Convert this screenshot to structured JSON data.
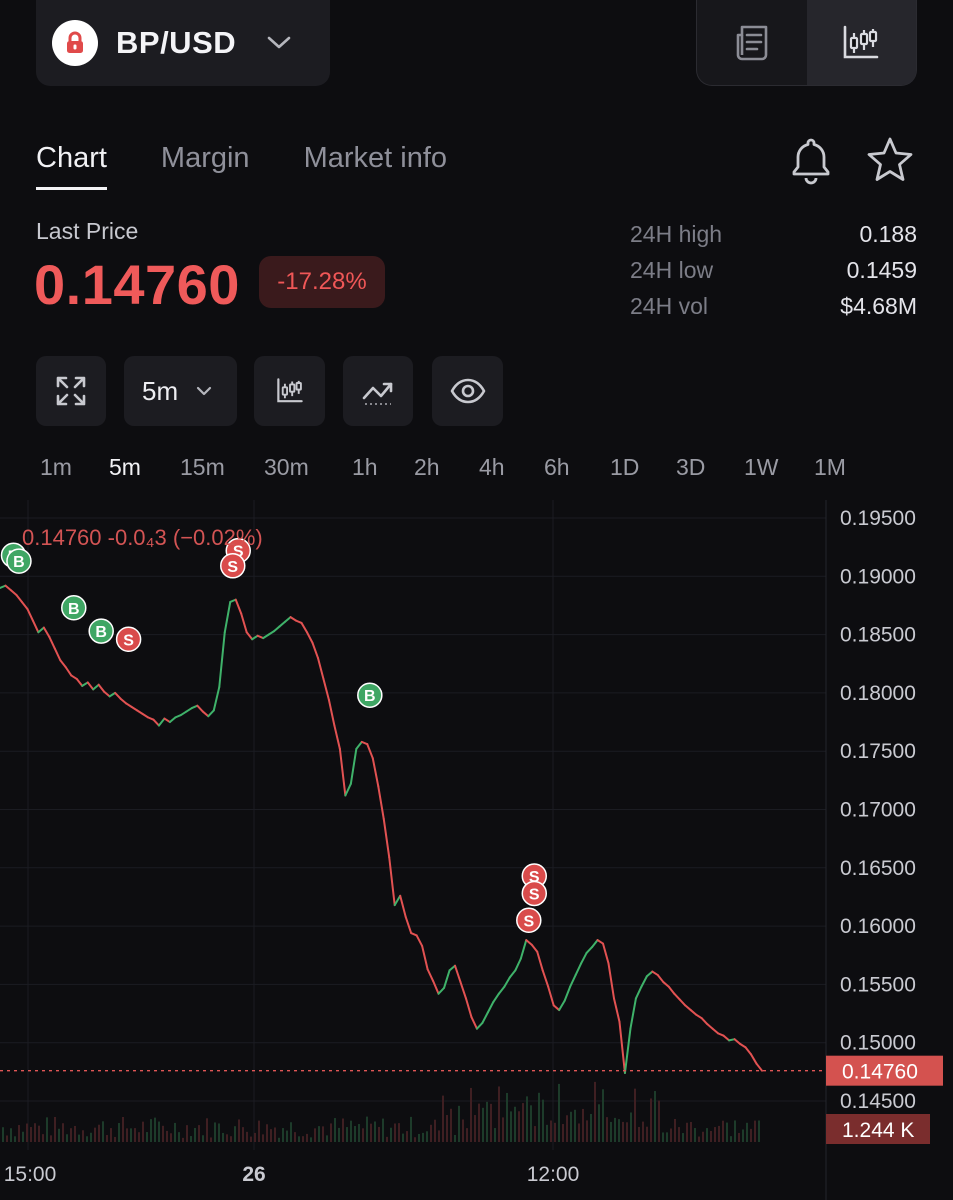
{
  "header": {
    "pair": "BP/USD",
    "icons": {
      "logo": "lock-logo",
      "dropdown": "chevron-down-icon",
      "view_orderbook": "document-list-icon",
      "view_chart": "candlestick-icon"
    }
  },
  "tabs": [
    {
      "label": "Chart",
      "active": true
    },
    {
      "label": "Margin",
      "active": false
    },
    {
      "label": "Market info",
      "active": false
    }
  ],
  "header_actions": {
    "alert": "bell-icon",
    "favorite": "star-icon"
  },
  "price": {
    "label": "Last Price",
    "value": "0.14760",
    "change": "-17.28%",
    "color": "#ef5a5a"
  },
  "stats": [
    {
      "label": "24H high",
      "value": "0.188"
    },
    {
      "label": "24H low",
      "value": "0.1459"
    },
    {
      "label": "24H vol",
      "value": "$4.68M"
    }
  ],
  "toolbar": {
    "fullscreen_icon": "expand-icon",
    "interval": "5m",
    "indicator_icon": "candlestick-icon",
    "drawing_icon": "trend-line-icon",
    "visibility_icon": "eye-icon"
  },
  "timeframes": [
    {
      "label": "1m",
      "active": false
    },
    {
      "label": "5m",
      "active": true
    },
    {
      "label": "15m",
      "active": false
    },
    {
      "label": "30m",
      "active": false
    },
    {
      "label": "1h",
      "active": false
    },
    {
      "label": "2h",
      "active": false
    },
    {
      "label": "4h",
      "active": false
    },
    {
      "label": "6h",
      "active": false
    },
    {
      "label": "1D",
      "active": false
    },
    {
      "label": "3D",
      "active": false
    },
    {
      "label": "1W",
      "active": false
    },
    {
      "label": "1M",
      "active": false
    }
  ],
  "chart_data": {
    "type": "line",
    "legend_text": "0.14760  -0.0₄3 (−0.02%)",
    "y_ticks": [
      "0.19500",
      "0.19000",
      "0.18500",
      "0.18000",
      "0.17500",
      "0.17000",
      "0.16500",
      "0.16000",
      "0.15500",
      "0.15000",
      "0.14500"
    ],
    "ylim": [
      0.14,
      0.1955
    ],
    "x_ticks": [
      "15:00",
      "26",
      "12:00"
    ],
    "current_price_label": "0.14760",
    "current_price": 0.1476,
    "volume_label": "1.244 K",
    "up_color": "#3fb26a",
    "down_color": "#e25252",
    "series": [
      {
        "values": [
          0.189,
          0.1892,
          0.1888,
          0.1884,
          0.1878,
          0.1872,
          0.1862,
          0.1852,
          0.1856,
          0.1848,
          0.1838,
          0.1828,
          0.1822,
          0.1815,
          0.1812,
          0.1806,
          0.1809,
          0.1803,
          0.1807,
          0.1801,
          0.1797,
          0.18,
          0.1795,
          0.1791,
          0.1788,
          0.1785,
          0.1782,
          0.1779,
          0.1777,
          0.1772,
          0.1778,
          0.1775,
          0.1779,
          0.1781,
          0.1784,
          0.1787,
          0.1789,
          0.1784,
          0.178,
          0.1785,
          0.1805,
          0.1852,
          0.1878,
          0.188,
          0.1868,
          0.1852,
          0.1846,
          0.1849,
          0.1847,
          0.185,
          0.1853,
          0.1857,
          0.1861,
          0.1865,
          0.1862,
          0.186,
          0.1852,
          0.1843,
          0.183,
          0.1812,
          0.1794,
          0.1772,
          0.1752,
          0.1712,
          0.1722,
          0.1752,
          0.1758,
          0.1756,
          0.1744,
          0.172,
          0.1692,
          0.1659,
          0.1618,
          0.1626,
          0.1608,
          0.1594,
          0.1592,
          0.1583,
          0.1563,
          0.1553,
          0.1542,
          0.1547,
          0.1562,
          0.1566,
          0.1552,
          0.1538,
          0.1522,
          0.1512,
          0.1517,
          0.1526,
          0.1535,
          0.1542,
          0.1548,
          0.1556,
          0.1562,
          0.1572,
          0.1588,
          0.1584,
          0.1578,
          0.1562,
          0.1548,
          0.1532,
          0.1528,
          0.1536,
          0.1548,
          0.1558,
          0.1568,
          0.1577,
          0.1582,
          0.1588,
          0.1585,
          0.1568,
          0.1538,
          0.1518,
          0.1474,
          0.1512,
          0.1538,
          0.1548,
          0.1557,
          0.1561,
          0.1558,
          0.1552,
          0.1548,
          0.1542,
          0.1537,
          0.1532,
          0.1528,
          0.1524,
          0.1521,
          0.1516,
          0.1512,
          0.1508,
          0.1506,
          0.1502,
          0.1503,
          0.1499,
          0.1496,
          0.149,
          0.1482,
          0.1476
        ]
      }
    ],
    "markers": [
      {
        "label": "B",
        "side": "buy",
        "index": 1,
        "y": 0.1918
      },
      {
        "label": "B",
        "side": "buy",
        "index": 2,
        "y": 0.1913
      },
      {
        "label": "B",
        "side": "buy",
        "index": 12,
        "y": 0.1873
      },
      {
        "label": "B",
        "side": "buy",
        "index": 17,
        "y": 0.1853
      },
      {
        "label": "S",
        "side": "sell",
        "index": 22,
        "y": 0.1846
      },
      {
        "label": "S",
        "side": "sell",
        "index": 42,
        "y": 0.1922
      },
      {
        "label": "S",
        "side": "sell",
        "index": 41,
        "y": 0.1909
      },
      {
        "label": "B",
        "side": "buy",
        "index": 66,
        "y": 0.1798
      },
      {
        "label": "S",
        "side": "sell",
        "index": 96,
        "y": 0.1643
      },
      {
        "label": "S",
        "side": "sell",
        "index": 96,
        "y": 0.1628
      },
      {
        "label": "S",
        "side": "sell",
        "index": 95,
        "y": 0.1605
      }
    ]
  }
}
